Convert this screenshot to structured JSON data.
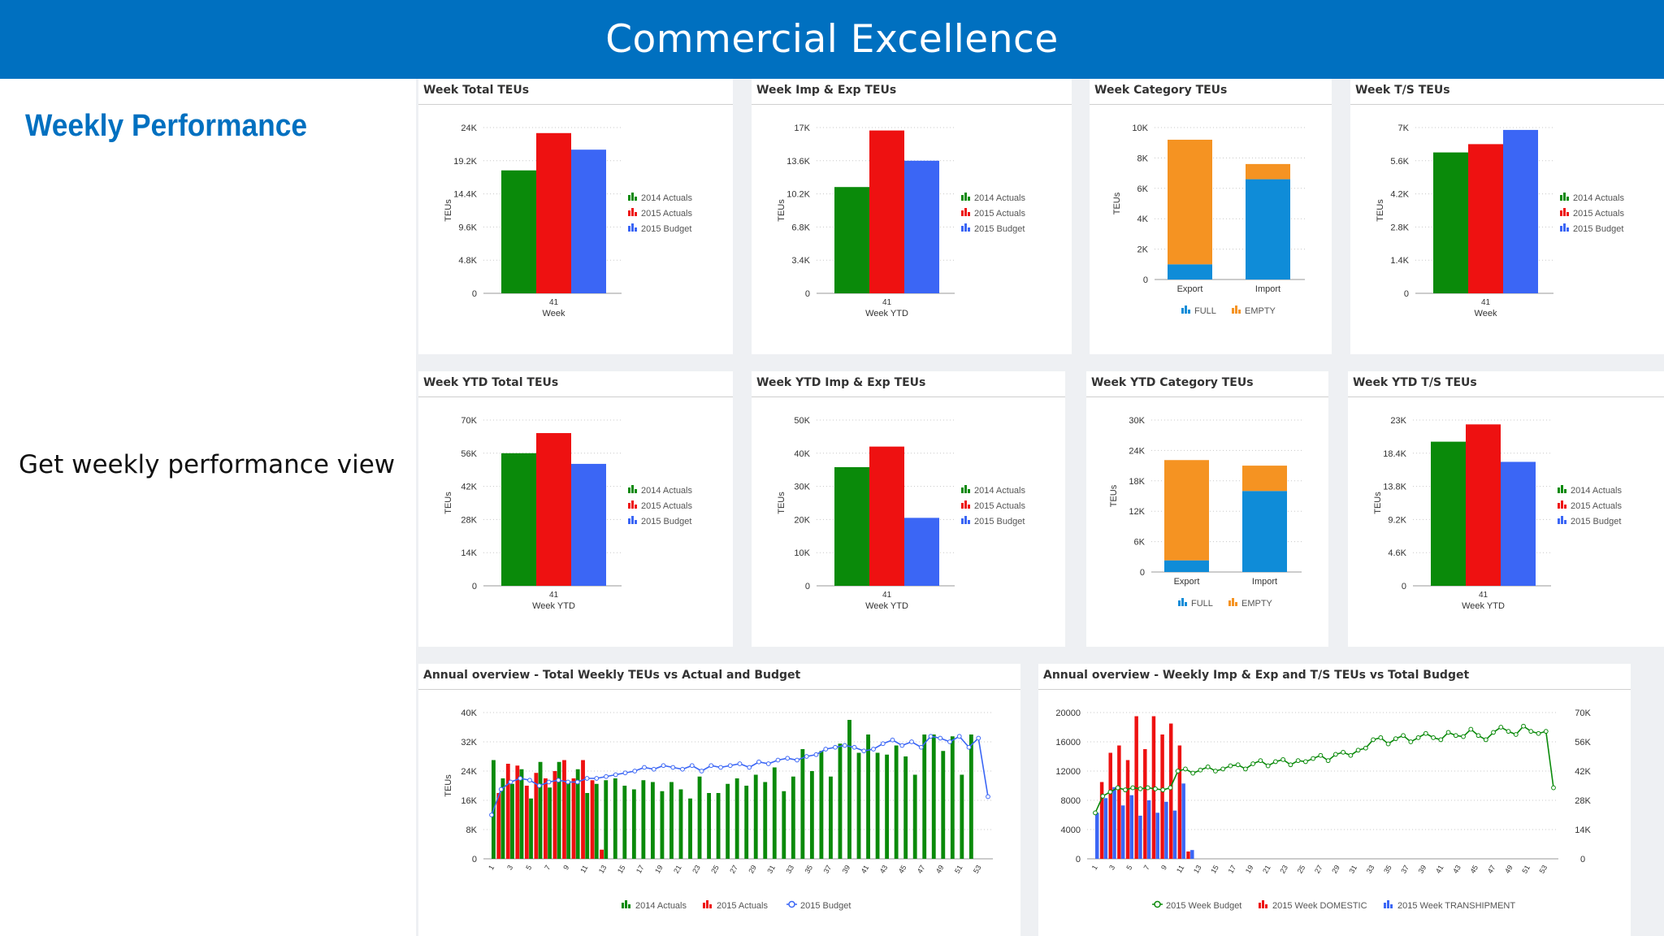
{
  "banner": {
    "title": "Commercial Excellence"
  },
  "heading": "Weekly Performance",
  "description": "Get weekly performance view",
  "colors": {
    "actuals2014": "#0a8a0a",
    "actuals2015": "#ee1111",
    "budget2015": "#3b66f5",
    "full": "#0f8cd8",
    "empty": "#f59322",
    "banner": "#0070c0"
  },
  "panels": [
    {
      "title": "Week Total TEUs",
      "chart_data": {
        "type": "bar",
        "categories": [
          "41"
        ],
        "xlabel": "Week",
        "ylabel": "TEUs",
        "ylim": [
          0,
          24000
        ],
        "y_ticks": [
          "0",
          "4.8K",
          "9.6K",
          "14.4K",
          "19.2K",
          "24K"
        ],
        "series": [
          {
            "name": "2014 Actuals",
            "values": [
              17800
            ]
          },
          {
            "name": "2015 Actuals",
            "values": [
              23200
            ]
          },
          {
            "name": "2015 Budget",
            "values": [
              20800
            ]
          }
        ],
        "legend": "right"
      }
    },
    {
      "title": "Week Imp & Exp TEUs",
      "chart_data": {
        "type": "bar",
        "categories": [
          "41"
        ],
        "xlabel": "Week YTD",
        "ylabel": "TEUs",
        "ylim": [
          0,
          17000
        ],
        "y_ticks": [
          "0",
          "3.4K",
          "6.8K",
          "10.2K",
          "13.6K",
          "17K"
        ],
        "series": [
          {
            "name": "2014 Actuals",
            "values": [
              10900
            ]
          },
          {
            "name": "2015 Actuals",
            "values": [
              16700
            ]
          },
          {
            "name": "2015 Budget",
            "values": [
              13600
            ]
          }
        ],
        "legend": "right"
      }
    },
    {
      "title": "Week Category TEUs",
      "chart_data": {
        "type": "bar",
        "stacked": true,
        "categories": [
          "Export",
          "Import"
        ],
        "ylim": [
          0,
          10000
        ],
        "ylabel": "TEUs",
        "y_ticks": [
          "0",
          "2K",
          "4K",
          "6K",
          "8K",
          "10K"
        ],
        "series": [
          {
            "name": "FULL",
            "values": [
              1000,
              6600
            ]
          },
          {
            "name": "EMPTY",
            "values": [
              8200,
              1000
            ]
          }
        ],
        "legend": "bottom"
      }
    },
    {
      "title": "Week T/S TEUs",
      "chart_data": {
        "type": "bar",
        "categories": [
          "41"
        ],
        "xlabel": "Week",
        "ylabel": "TEUs",
        "ylim": [
          0,
          7000
        ],
        "y_ticks": [
          "0",
          "1.4K",
          "2.8K",
          "4.2K",
          "5.6K",
          "7K"
        ],
        "series": [
          {
            "name": "2014 Actuals",
            "values": [
              5950
            ]
          },
          {
            "name": "2015 Actuals",
            "values": [
              6300
            ]
          },
          {
            "name": "2015 Budget",
            "values": [
              6900
            ]
          }
        ],
        "legend": "right"
      }
    },
    {
      "title": "Week YTD Total TEUs",
      "chart_data": {
        "type": "bar",
        "categories": [
          "41"
        ],
        "xlabel": "Week YTD",
        "ylabel": "TEUs",
        "ylim": [
          0,
          70000
        ],
        "y_ticks": [
          "0",
          "14K",
          "28K",
          "42K",
          "56K",
          "70K"
        ],
        "series": [
          {
            "name": "2014 Actuals",
            "values": [
              56000
            ]
          },
          {
            "name": "2015 Actuals",
            "values": [
              64500
            ]
          },
          {
            "name": "2015 Budget",
            "values": [
              51500
            ]
          }
        ],
        "legend": "right"
      }
    },
    {
      "title": "Week YTD Imp & Exp TEUs",
      "chart_data": {
        "type": "bar",
        "categories": [
          "41"
        ],
        "xlabel": "Week YTD",
        "ylabel": "TEUs",
        "ylim": [
          0,
          50000
        ],
        "y_ticks": [
          "0",
          "10K",
          "20K",
          "30K",
          "40K",
          "50K"
        ],
        "series": [
          {
            "name": "2014 Actuals",
            "values": [
              35800
            ]
          },
          {
            "name": "2015 Actuals",
            "values": [
              42000
            ]
          },
          {
            "name": "2015 Budget",
            "values": [
              20500
            ]
          }
        ],
        "legend": "right"
      }
    },
    {
      "title": "Week YTD Category TEUs",
      "chart_data": {
        "type": "bar",
        "stacked": true,
        "categories": [
          "Export",
          "Import"
        ],
        "ylim": [
          0,
          30000
        ],
        "ylabel": "TEUs",
        "y_ticks": [
          "0",
          "6K",
          "12K",
          "18K",
          "24K",
          "30K"
        ],
        "series": [
          {
            "name": "FULL",
            "values": [
              2300,
              16000
            ]
          },
          {
            "name": "EMPTY",
            "values": [
              19800,
              5000
            ]
          }
        ],
        "legend": "bottom"
      }
    },
    {
      "title": "Week YTD T/S TEUs",
      "chart_data": {
        "type": "bar",
        "categories": [
          "41"
        ],
        "xlabel": "Week YTD",
        "ylabel": "TEUs",
        "ylim": [
          0,
          23000
        ],
        "y_ticks": [
          "0",
          "4.6K",
          "9.2K",
          "13.8K",
          "18.4K",
          "23K"
        ],
        "series": [
          {
            "name": "2014 Actuals",
            "values": [
              20000
            ]
          },
          {
            "name": "2015 Actuals",
            "values": [
              22400
            ]
          },
          {
            "name": "2015 Budget",
            "values": [
              17200
            ]
          }
        ],
        "legend": "right"
      }
    },
    {
      "title": "Annual overview - Total Weekly TEUs vs Actual and Budget",
      "chart_data": {
        "type": "bar+line",
        "ylabel": "TEUs",
        "ylim": [
          0,
          40000
        ],
        "y_ticks": [
          "0",
          "8K",
          "16K",
          "24K",
          "32K",
          "40K"
        ],
        "x_ticks": [
          "1",
          "3",
          "5",
          "7",
          "9",
          "11",
          "13",
          "15",
          "17",
          "19",
          "21",
          "23",
          "25",
          "27",
          "29",
          "31",
          "33",
          "35",
          "37",
          "39",
          "41",
          "43",
          "45",
          "47",
          "49",
          "51",
          "53"
        ],
        "series": [
          {
            "name": "2014 Actuals",
            "type": "bar",
            "values": [
              27000,
              22000,
              20500,
              24500,
              16500,
              26500,
              19500,
              26500,
              21000,
              24500,
              18000,
              20500,
              21500,
              22000,
              20000,
              19000,
              21500,
              21000,
              18500,
              21000,
              19000,
              16500,
              22500,
              18000,
              18000,
              20500,
              22000,
              20000,
              23000,
              21000,
              25000,
              18500,
              22500,
              30000,
              24000,
              29500,
              22500,
              31500,
              38000,
              29000,
              34000,
              29000,
              28500,
              31000,
              28000,
              23000,
              34000,
              34000,
              29500,
              33500,
              23000,
              34000
            ]
          },
          {
            "name": "2015 Actuals",
            "type": "bar",
            "values": [
              18000,
              26000,
              25500,
              20000,
              23500,
              22000,
              24000,
              27000,
              22000,
              27000,
              21500,
              2500
            ]
          },
          {
            "name": "2015 Budget",
            "type": "line",
            "values": [
              12000,
              19000,
              21000,
              22000,
              21500,
              20000,
              21000,
              21500,
              21000,
              21000,
              22000,
              22000,
              22500,
              23000,
              23500,
              24000,
              25000,
              24500,
              25500,
              25000,
              24500,
              25500,
              24000,
              25500,
              25000,
              25500,
              26000,
              25000,
              26500,
              26000,
              27000,
              27500,
              27000,
              28000,
              28500,
              30000,
              30500,
              31000,
              30500,
              29500,
              30000,
              31500,
              32500,
              31000,
              32000,
              30500,
              33500,
              33000,
              32000,
              33500,
              30500,
              33000,
              17000
            ]
          }
        ],
        "legend": "bottom"
      }
    },
    {
      "title": "Annual overview - Weekly Imp & Exp and T/S TEUs vs Total Budget",
      "chart_data": {
        "type": "bar+line",
        "ylim": [
          0,
          20000
        ],
        "y2lim": [
          0,
          70000
        ],
        "y_ticks": [
          "0",
          "4000",
          "8000",
          "12000",
          "16000",
          "20000"
        ],
        "y2_ticks": [
          "0",
          "14K",
          "28K",
          "42K",
          "56K",
          "70K"
        ],
        "x_ticks": [
          "1",
          "3",
          "5",
          "7",
          "9",
          "11",
          "13",
          "15",
          "17",
          "19",
          "21",
          "23",
          "25",
          "27",
          "29",
          "31",
          "33",
          "35",
          "37",
          "39",
          "41",
          "43",
          "45",
          "47",
          "49",
          "51",
          "53"
        ],
        "series": [
          {
            "name": "2015 Week DOMESTIC",
            "type": "bar",
            "values": [
              10500,
              14500,
              15500,
              13500,
              19500,
              15000,
              19500,
              17000,
              18500,
              15500,
              1000,
              0
            ]
          },
          {
            "name": "2015 Week TRANSHIPMENT",
            "type": "bar",
            "values": [
              6300,
              8300,
              9800,
              7300,
              8700,
              5900,
              8000,
              6300,
              7800,
              6600,
              10300,
              1200
            ]
          },
          {
            "name": "2015 Week Budget",
            "type": "line",
            "axis": "secondary",
            "values": [
              22000,
              30000,
              32000,
              34000,
              33000,
              34000,
              33500,
              34000,
              33500,
              33000,
              34000,
              42000,
              43000,
              41000,
              42500,
              44000,
              42000,
              43000,
              44500,
              45000,
              43000,
              45500,
              47000,
              44500,
              46500,
              47500,
              45000,
              47000,
              46500,
              48000,
              49500,
              47000,
              50000,
              51000,
              49500,
              52000,
              53000,
              57000,
              58000,
              55000,
              57500,
              59000,
              56000,
              58000,
              60000,
              58000,
              57000,
              60500,
              59000,
              58500,
              62000,
              59000,
              57000,
              60500,
              63000,
              61000,
              59500,
              63500,
              61000,
              60000,
              61000,
              34000
            ]
          }
        ],
        "legend": "bottom"
      }
    }
  ]
}
